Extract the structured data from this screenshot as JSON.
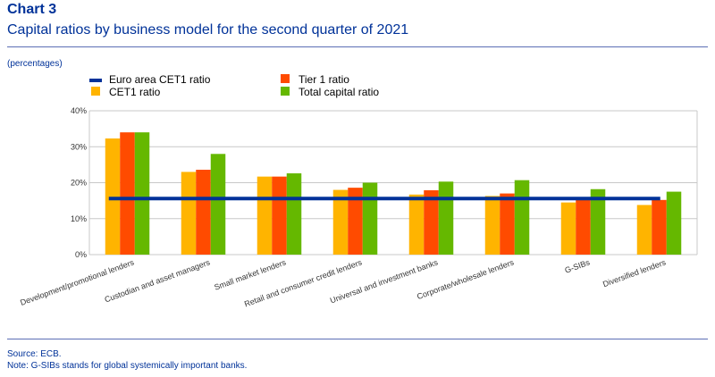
{
  "header": {
    "chart_label": "Chart 3",
    "title": "Capital ratios by business model for the second quarter of 2021",
    "units": "(percentages)"
  },
  "footer": {
    "source": "Source: ECB.",
    "note": "Note: G-SIBs stands for global systemically important banks."
  },
  "chart_data": {
    "type": "bar",
    "categories": [
      "Development/promotional lenders",
      "Custodian and asset managers",
      "Small market lenders",
      "Retail and consumer credit lenders",
      "Universal and investment banks",
      "Corporate/wholesale lenders",
      "G-SIBs",
      "Diversified lenders"
    ],
    "series": [
      {
        "name": "CET1  ratio",
        "color": "#ffb400",
        "values": [
          32.3,
          23.0,
          21.7,
          18.0,
          16.7,
          16.3,
          14.5,
          13.8
        ]
      },
      {
        "name": "Tier 1 ratio",
        "color": "#ff4b00",
        "values": [
          34.0,
          23.6,
          21.7,
          18.6,
          17.9,
          17.0,
          15.3,
          15.2
        ]
      },
      {
        "name": "Total capital ratio",
        "color": "#65b800",
        "values": [
          34.0,
          28.0,
          22.6,
          20.0,
          20.3,
          20.7,
          18.2,
          17.5
        ]
      }
    ],
    "line": {
      "name": "Euro area CET1  ratio",
      "color": "#003299",
      "value": 15.6
    },
    "legend_order": [
      "Euro area CET1  ratio",
      "Tier 1 ratio",
      "CET1  ratio",
      "Total capital ratio"
    ],
    "ylim": [
      0,
      40
    ],
    "yticks": [
      0,
      10,
      20,
      30,
      40
    ],
    "ytick_labels": [
      "0%",
      "10%",
      "20%",
      "30%",
      "40%"
    ],
    "grid": true,
    "legend_position": "top-left"
  }
}
